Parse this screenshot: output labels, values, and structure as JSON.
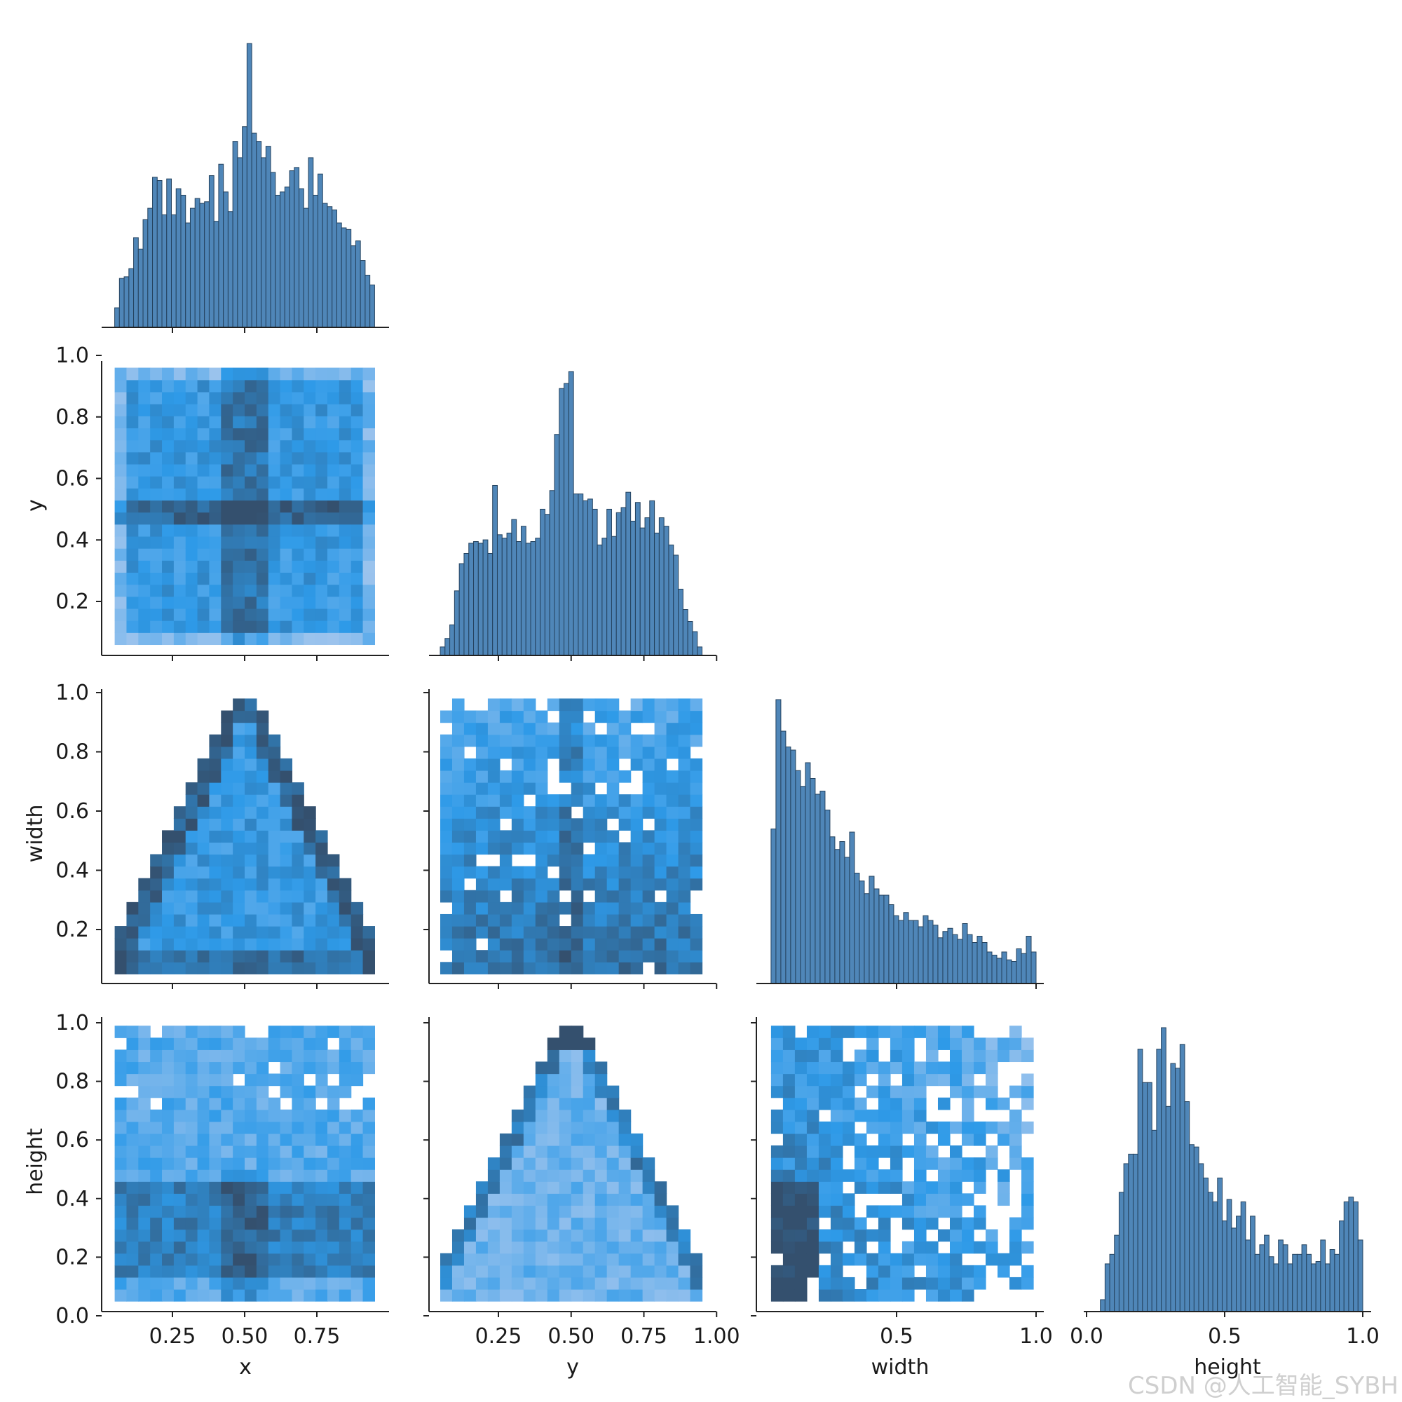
{
  "chart_data": {
    "type": "pairplot",
    "variables": [
      "x",
      "y",
      "width",
      "height"
    ],
    "corner": true,
    "colors": {
      "bar_fill": "#4f86b8",
      "bar_edge": "#24425e",
      "heat_low": "#a8c8ee",
      "heat_mid": "#2e9ae8",
      "heat_high": "#34506e"
    },
    "xlabels": [
      "x",
      "y",
      "width",
      "height"
    ],
    "ylabels": [
      "",
      "y",
      "width",
      "height"
    ],
    "x_ticks": [
      [
        "0.25",
        "0.50",
        "0.75"
      ],
      [
        "0.25",
        "0.50",
        "0.75",
        "1.00"
      ],
      [
        "0.5",
        "1.0"
      ],
      [
        "0.0",
        "0.5",
        "1.0"
      ]
    ],
    "y_ticks": [
      "0.0",
      "0.2",
      "0.4",
      "0.6",
      "0.8",
      "1.0"
    ],
    "axis_ranges": {
      "x": [
        0.0,
        1.0
      ],
      "y": [
        0.0,
        1.0
      ],
      "width": [
        0.0,
        1.02
      ],
      "height": [
        0.0,
        1.02
      ]
    },
    "histograms": [
      {
        "variable": "x",
        "bin_range": [
          0.05,
          0.95
        ],
        "counts": [
          12,
          30,
          31,
          36,
          55,
          48,
          66,
          73,
          92,
          90,
          69,
          91,
          69,
          85,
          81,
          64,
          73,
          79,
          76,
          77,
          93,
          65,
          100,
          83,
          71,
          114,
          104,
          123,
          174,
          119,
          114,
          104,
          111,
          95,
          81,
          83,
          86,
          96,
          98,
          85,
          73,
          104,
          81,
          94,
          76,
          74,
          72,
          64,
          61,
          60,
          50,
          53,
          41,
          32,
          26
        ]
      },
      {
        "variable": "y",
        "bin_range": [
          0.05,
          0.95
        ],
        "counts": [
          5,
          10,
          18,
          38,
          54,
          60,
          66,
          67,
          66,
          68,
          60,
          100,
          71,
          69,
          72,
          80,
          67,
          76,
          66,
          67,
          69,
          86,
          83,
          97,
          130,
          157,
          160,
          167,
          95,
          95,
          91,
          92,
          86,
          65,
          69,
          86,
          70,
          84,
          87,
          96,
          79,
          90,
          75,
          81,
          91,
          72,
          81,
          76,
          65,
          59,
          39,
          27,
          20,
          14,
          5
        ]
      },
      {
        "variable": "width",
        "bin_range": [
          0.05,
          1.0
        ],
        "counts": [
          98,
          180,
          160,
          150,
          148,
          135,
          125,
          140,
          130,
          120,
          122,
          110,
          93,
          85,
          90,
          80,
          96,
          70,
          65,
          57,
          68,
          60,
          56,
          56,
          50,
          43,
          40,
          45,
          40,
          40,
          36,
          43,
          40,
          37,
          29,
          33,
          35,
          31,
          28,
          38,
          31,
          26,
          30,
          26,
          20,
          18,
          16,
          20,
          15,
          14,
          22,
          19,
          30,
          20
        ]
      },
      {
        "variable": "height",
        "bin_range": [
          0.05,
          1.0
        ],
        "counts": [
          5,
          20,
          24,
          32,
          50,
          62,
          66,
          66,
          110,
          96,
          96,
          76,
          110,
          119,
          86,
          104,
          102,
          112,
          88,
          70,
          69,
          62,
          56,
          50,
          46,
          56,
          38,
          47,
          35,
          40,
          46,
          30,
          40,
          24,
          28,
          32,
          23,
          20,
          30,
          28,
          20,
          24,
          24,
          28,
          24,
          20,
          21,
          30,
          20,
          26,
          24,
          38,
          46,
          48,
          46,
          30
        ]
      }
    ],
    "heatmaps": [
      {
        "x": "x",
        "y": "y",
        "pattern": "uniform, darker bands at x≈0.5 and y≈0.5"
      },
      {
        "x": "x",
        "y": "width",
        "pattern": "triangle, apex at x=0.5 width=1.0, dark edges and base band"
      },
      {
        "x": "y",
        "y": "width",
        "pattern": "rectangular, denser at low width and y≈0.5"
      },
      {
        "x": "x",
        "y": "height",
        "pattern": "uniform, denser around height 0.2-0.4 and x≈0.5"
      },
      {
        "x": "y",
        "y": "height",
        "pattern": "triangle, apex at y=0.5 height=1.0, dark edges"
      },
      {
        "x": "width",
        "y": "height",
        "pattern": "dense at low width and low height, sparse elsewhere"
      }
    ],
    "watermark": "CSDN @人工智能_SYBH"
  }
}
